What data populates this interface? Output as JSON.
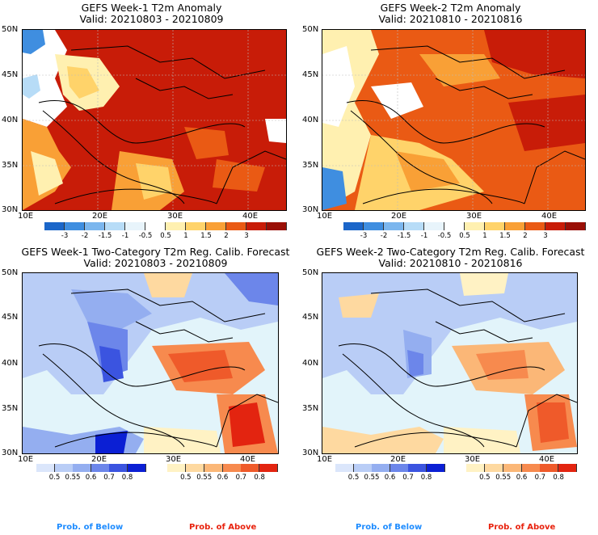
{
  "panels": [
    {
      "title": "GEFS Week-1 T2m Anomaly",
      "valid": "Valid: 20210803 - 20210809"
    },
    {
      "title": "GEFS Week-2 T2m Anomaly",
      "valid": "Valid: 20210810 - 20210816"
    },
    {
      "title": "GEFS Week-1 Two-Category T2m Reg. Calib. Forecast",
      "valid": "Valid: 20210803 - 20210809"
    },
    {
      "title": "GEFS Week-2 Two-Category T2m Reg. Calib. Forecast",
      "valid": "Valid: 20210810 - 20210816"
    }
  ],
  "lat_labels": [
    "50N",
    "45N",
    "40N",
    "35N",
    "30N"
  ],
  "lon_labels": [
    "10E",
    "20E",
    "30E",
    "40E"
  ],
  "anomaly_colorbar": {
    "ticks": [
      "-3",
      "-2",
      "-1.5",
      "-1",
      "-0.5",
      "0.5",
      "1",
      "1.5",
      "2",
      "3"
    ],
    "colors": [
      "#1b66c9",
      "#3f8ee0",
      "#7bb6ee",
      "#b7dcf7",
      "#e8f4fb",
      "#ffffff",
      "#fff0b0",
      "#ffd36a",
      "#f9a036",
      "#ea5a14",
      "#c81c08",
      "#9a0f06"
    ]
  },
  "prob_colorbars": {
    "below": {
      "ticks": [
        "0.5",
        "0.55",
        "0.6",
        "0.7",
        "0.8"
      ],
      "colors": [
        "#dbe6fb",
        "#b9cdf6",
        "#94aef0",
        "#6c86ea",
        "#3b54e0",
        "#0b1fd4"
      ]
    },
    "above": {
      "ticks": [
        "0.5",
        "0.55",
        "0.6",
        "0.7",
        "0.8"
      ],
      "colors": [
        "#fff2c4",
        "#fed9a0",
        "#fbb777",
        "#f78a4e",
        "#ef5a2a",
        "#e32410"
      ]
    }
  },
  "prob_labels": {
    "below": "Prob. of Below",
    "above": "Prob. of Above"
  },
  "colors": {
    "below_label": "#1e8cff",
    "above_label": "#e8220e",
    "sea_light": "#e2f4fa"
  }
}
